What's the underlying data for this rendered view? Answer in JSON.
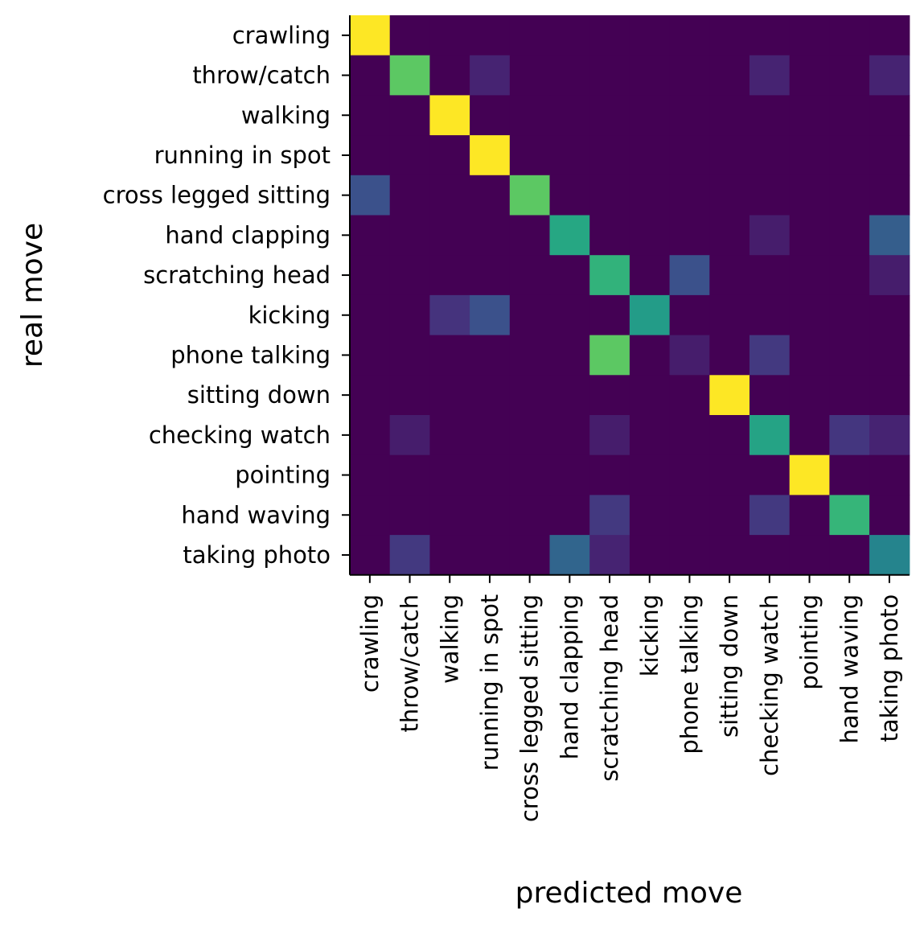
{
  "chart_data": {
    "type": "heatmap",
    "title": "",
    "xlabel": "predicted move",
    "ylabel": "real move",
    "x_categories": [
      "crawling",
      "throw/catch",
      "walking",
      "running in spot",
      "cross legged sitting",
      "hand clapping",
      "scratching head",
      "kicking",
      "phone talking",
      "sitting down",
      "checking watch",
      "pointing",
      "hand waving",
      "taking photo"
    ],
    "y_categories": [
      "crawling",
      "throw/catch",
      "walking",
      "running in spot",
      "cross legged sitting",
      "hand clapping",
      "scratching head",
      "kicking",
      "phone talking",
      "sitting down",
      "checking watch",
      "pointing",
      "hand waving",
      "taking photo"
    ],
    "values": [
      [
        1.0,
        0,
        0,
        0,
        0,
        0,
        0,
        0,
        0,
        0,
        0,
        0,
        0,
        0
      ],
      [
        0,
        0.75,
        0,
        0.1,
        0,
        0,
        0,
        0,
        0,
        0,
        0.1,
        0,
        0,
        0.1
      ],
      [
        0,
        0,
        1.0,
        0,
        0,
        0,
        0,
        0,
        0,
        0,
        0,
        0,
        0,
        0
      ],
      [
        0,
        0,
        0,
        1.0,
        0,
        0,
        0,
        0,
        0,
        0,
        0,
        0,
        0,
        0
      ],
      [
        0.25,
        0,
        0,
        0,
        0.75,
        0,
        0,
        0,
        0,
        0,
        0,
        0,
        0,
        0
      ],
      [
        0,
        0,
        0,
        0,
        0,
        0.6,
        0,
        0,
        0,
        0,
        0.08,
        0,
        0,
        0.3
      ],
      [
        0,
        0,
        0,
        0,
        0,
        0,
        0.65,
        0,
        0.25,
        0,
        0,
        0,
        0,
        0.08
      ],
      [
        0,
        0,
        0.15,
        0.25,
        0,
        0,
        0,
        0.55,
        0,
        0,
        0,
        0,
        0,
        0
      ],
      [
        0,
        0,
        0,
        0,
        0,
        0,
        0.75,
        0,
        0.08,
        0,
        0.17,
        0,
        0,
        0
      ],
      [
        0,
        0,
        0,
        0,
        0,
        0,
        0,
        0,
        0,
        1.0,
        0,
        0,
        0,
        0
      ],
      [
        0,
        0.08,
        0,
        0,
        0,
        0,
        0.08,
        0,
        0,
        0,
        0.58,
        0,
        0.16,
        0.1
      ],
      [
        0,
        0,
        0,
        0,
        0,
        0,
        0,
        0,
        0,
        0,
        0,
        1.0,
        0,
        0
      ],
      [
        0,
        0,
        0,
        0,
        0,
        0,
        0.17,
        0,
        0,
        0,
        0.17,
        0,
        0.66,
        0
      ],
      [
        0,
        0.17,
        0,
        0,
        0,
        0.33,
        0.1,
        0,
        0,
        0,
        0,
        0,
        0,
        0.45
      ]
    ],
    "zlim": [
      0,
      1
    ],
    "colormap": "viridis",
    "grid": false,
    "legend": "none"
  }
}
